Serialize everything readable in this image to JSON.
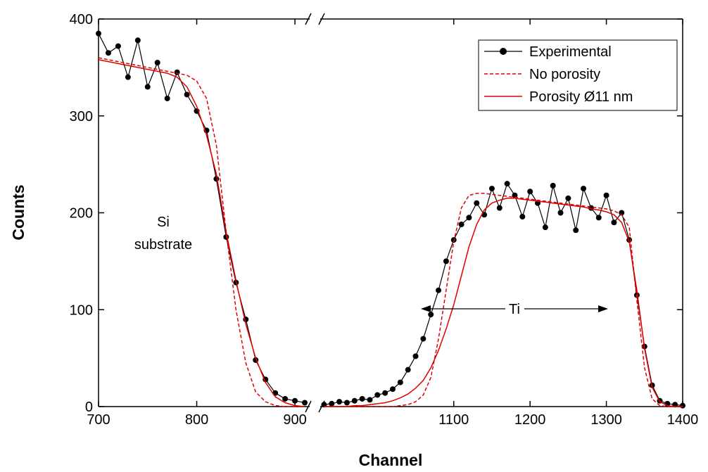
{
  "chart_data": {
    "type": "line",
    "x_label": "Channel",
    "y_label": "Counts",
    "x": [
      700,
      710,
      720,
      730,
      740,
      750,
      760,
      770,
      780,
      790,
      800,
      810,
      820,
      830,
      840,
      850,
      860,
      870,
      880,
      890,
      900,
      910,
      920,
      930,
      940,
      950,
      960,
      970,
      980,
      990,
      1000,
      1010,
      1020,
      1030,
      1040,
      1050,
      1060,
      1070,
      1080,
      1090,
      1100,
      1110,
      1120,
      1130,
      1140,
      1150,
      1160,
      1170,
      1180,
      1190,
      1200,
      1210,
      1220,
      1230,
      1240,
      1250,
      1260,
      1270,
      1280,
      1290,
      1300,
      1310,
      1320,
      1330,
      1340,
      1350,
      1360,
      1370,
      1380,
      1390,
      1400
    ],
    "series": [
      {
        "name": "Experimental",
        "color": "#000000",
        "style": "line-marker",
        "values": [
          385,
          365,
          372,
          340,
          378,
          330,
          355,
          318,
          345,
          322,
          305,
          285,
          235,
          175,
          128,
          90,
          48,
          28,
          14,
          8,
          6,
          4,
          null,
          2,
          3,
          5,
          4,
          6,
          8,
          7,
          12,
          14,
          18,
          25,
          38,
          52,
          70,
          95,
          120,
          150,
          172,
          188,
          195,
          210,
          198,
          225,
          205,
          230,
          218,
          196,
          222,
          210,
          185,
          228,
          200,
          215,
          182,
          225,
          205,
          195,
          218,
          190,
          200,
          172,
          115,
          62,
          22,
          6,
          3,
          2,
          1
        ]
      },
      {
        "name": "No porosity",
        "color": "#e00000",
        "style": "dashed",
        "values": [
          360,
          358,
          356,
          354,
          352,
          350,
          348,
          346,
          344,
          342,
          336,
          318,
          270,
          180,
          100,
          45,
          15,
          5,
          1,
          0,
          0,
          0,
          null,
          0,
          0,
          0,
          0,
          0,
          0,
          0,
          0,
          0,
          0,
          1,
          2,
          5,
          12,
          30,
          70,
          120,
          170,
          205,
          218,
          220,
          220,
          219,
          218,
          217,
          216,
          215,
          214,
          213,
          212,
          211,
          210,
          209,
          208,
          207,
          206,
          205,
          204,
          202,
          198,
          185,
          110,
          40,
          8,
          1,
          0,
          0,
          0
        ]
      },
      {
        "name": "Porosity Ø11 nm",
        "color": "#e00000",
        "style": "solid",
        "values": [
          358,
          356,
          354,
          352,
          350,
          348,
          346,
          344,
          340,
          330,
          310,
          280,
          240,
          180,
          130,
          85,
          50,
          25,
          10,
          4,
          1,
          0,
          null,
          0,
          0,
          0,
          0,
          1,
          1,
          2,
          3,
          4,
          6,
          9,
          13,
          19,
          27,
          40,
          58,
          80,
          105,
          135,
          165,
          188,
          203,
          210,
          213,
          215,
          215,
          214,
          213,
          212,
          211,
          210,
          209,
          208,
          207,
          206,
          204,
          203,
          201,
          198,
          190,
          170,
          120,
          60,
          20,
          5,
          1,
          0,
          0
        ]
      }
    ],
    "xlim": [
      700,
      1400
    ],
    "x_break": [
      915,
      925
    ],
    "xticks": [
      700,
      800,
      900,
      1100,
      1200,
      1300,
      1400
    ],
    "ylim": [
      0,
      400
    ],
    "yticks": [
      0,
      100,
      200,
      300,
      400
    ],
    "annotations": [
      "Si",
      "substrate",
      "Ti"
    ],
    "legend": "top-right"
  }
}
